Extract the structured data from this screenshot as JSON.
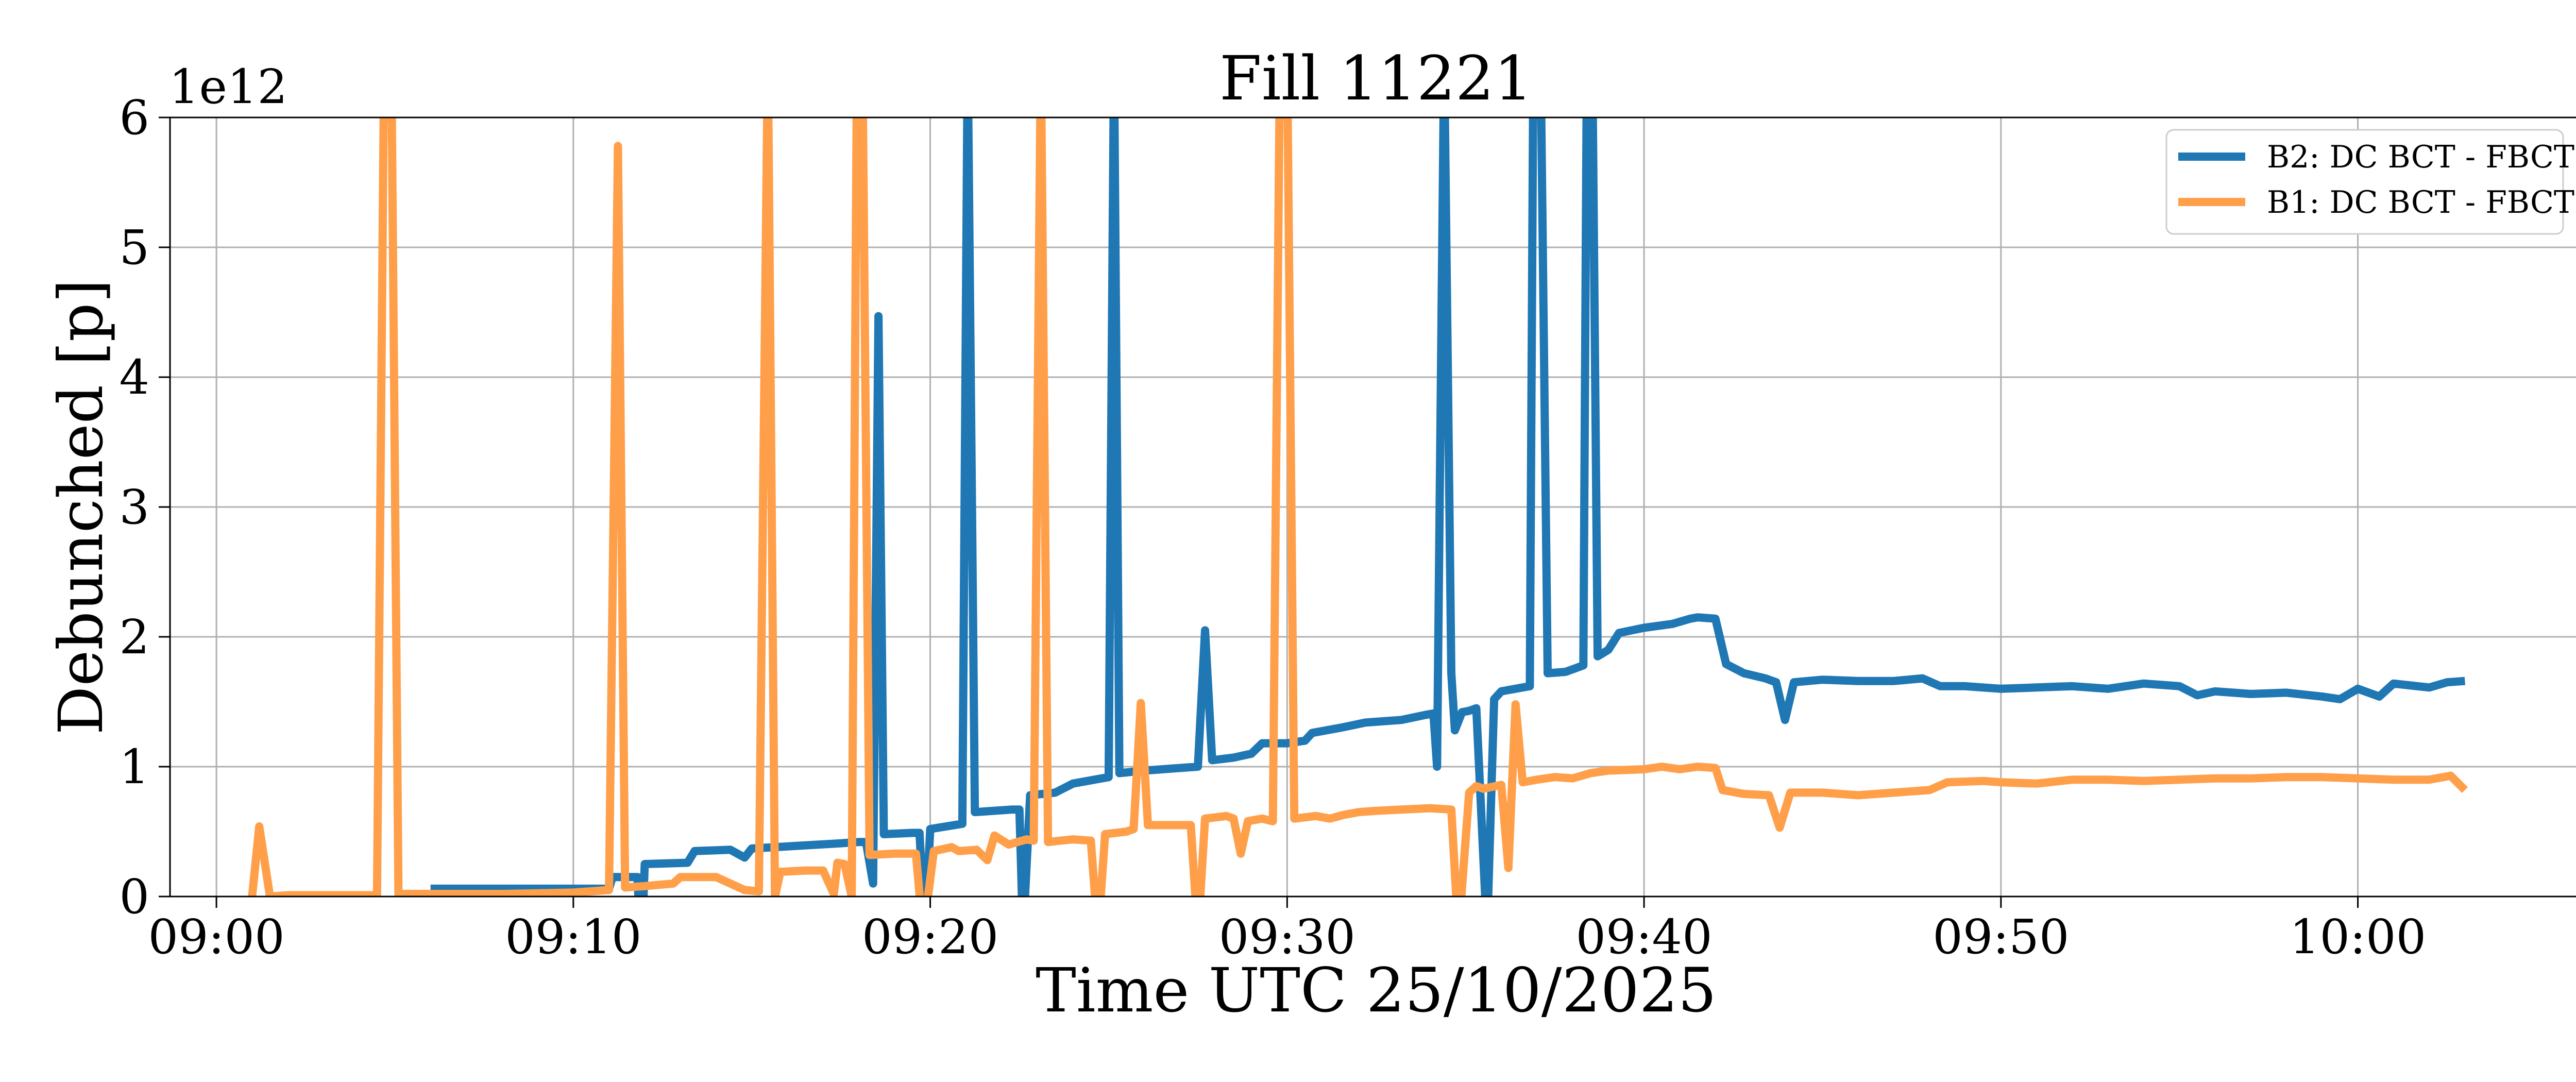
{
  "chart_data": {
    "type": "line",
    "title": "Fill 11221",
    "xlabel": "Time UTC 25/10/2025",
    "ylabel": "Debunched [p]",
    "y_offset_label": "1e12",
    "x_unit": "minutes after 09:00",
    "xlim": [
      -1.3,
      66.3
    ],
    "ylim": [
      0,
      6
    ],
    "x_ticks": [
      0,
      10,
      20,
      30,
      40,
      50,
      60
    ],
    "x_tick_labels": [
      "09:00",
      "09:10",
      "09:20",
      "09:30",
      "09:40",
      "09:50",
      "10:00"
    ],
    "y_ticks": [
      0,
      1,
      2,
      3,
      4,
      5,
      6
    ],
    "y_tick_labels": [
      "0",
      "1",
      "2",
      "3",
      "4",
      "5",
      "6"
    ],
    "grid": true,
    "legend_position": "top-right",
    "series": [
      {
        "name": "B2: DC BCT - FBCT",
        "color": "#1f77b4",
        "points": [
          [
            6.0,
            0.06
          ],
          [
            11.0,
            0.06
          ],
          [
            11.1,
            0.15
          ],
          [
            11.8,
            0.15
          ],
          [
            11.9,
            -0.5
          ],
          [
            12.0,
            0.25
          ],
          [
            13.2,
            0.26
          ],
          [
            13.4,
            0.35
          ],
          [
            14.4,
            0.36
          ],
          [
            14.8,
            0.3
          ],
          [
            15.0,
            0.37
          ],
          [
            17.5,
            0.41
          ],
          [
            18.0,
            0.42
          ],
          [
            18.2,
            0.42
          ],
          [
            18.4,
            0.1
          ],
          [
            18.55,
            4.47
          ],
          [
            18.7,
            0.48
          ],
          [
            19.5,
            0.49
          ],
          [
            19.7,
            0.49
          ],
          [
            19.85,
            -0.3
          ],
          [
            20.0,
            0.52
          ],
          [
            20.9,
            0.56
          ],
          [
            21.05,
            6.5
          ],
          [
            21.25,
            0.65
          ],
          [
            22.3,
            0.67
          ],
          [
            22.5,
            0.67
          ],
          [
            22.6,
            -0.3
          ],
          [
            22.8,
            0.78
          ],
          [
            23.5,
            0.8
          ],
          [
            24.0,
            0.87
          ],
          [
            25.0,
            0.92
          ],
          [
            25.15,
            6.5
          ],
          [
            25.3,
            0.95
          ],
          [
            26.0,
            0.97
          ],
          [
            27.5,
            1.0
          ],
          [
            27.7,
            2.05
          ],
          [
            27.9,
            1.05
          ],
          [
            28.5,
            1.07
          ],
          [
            29.0,
            1.1
          ],
          [
            29.3,
            1.18
          ],
          [
            30.0,
            1.18
          ],
          [
            30.5,
            1.2
          ],
          [
            30.7,
            1.26
          ],
          [
            31.5,
            1.3
          ],
          [
            32.2,
            1.34
          ],
          [
            33.2,
            1.36
          ],
          [
            33.9,
            1.4
          ],
          [
            34.1,
            1.41
          ],
          [
            34.2,
            1.0
          ],
          [
            34.4,
            6.5
          ],
          [
            34.6,
            1.72
          ],
          [
            34.7,
            1.28
          ],
          [
            34.9,
            1.42
          ],
          [
            35.1,
            1.43
          ],
          [
            35.3,
            1.45
          ],
          [
            35.6,
            -0.3
          ],
          [
            35.8,
            1.52
          ],
          [
            36.0,
            1.58
          ],
          [
            36.8,
            1.62
          ],
          [
            36.9,
            6.5
          ],
          [
            37.1,
            6.5
          ],
          [
            37.3,
            1.72
          ],
          [
            37.8,
            1.73
          ],
          [
            38.3,
            1.78
          ],
          [
            38.4,
            6.5
          ],
          [
            38.55,
            6.5
          ],
          [
            38.7,
            1.85
          ],
          [
            39.0,
            1.9
          ],
          [
            39.3,
            2.03
          ],
          [
            40.0,
            2.07
          ],
          [
            40.8,
            2.1
          ],
          [
            41.3,
            2.14
          ],
          [
            41.5,
            2.15
          ],
          [
            42.0,
            2.14
          ],
          [
            42.3,
            1.79
          ],
          [
            42.8,
            1.72
          ],
          [
            43.4,
            1.68
          ],
          [
            43.7,
            1.65
          ],
          [
            43.95,
            1.36
          ],
          [
            44.2,
            1.65
          ],
          [
            45.0,
            1.67
          ],
          [
            46.0,
            1.66
          ],
          [
            47.0,
            1.66
          ],
          [
            47.8,
            1.68
          ],
          [
            48.3,
            1.62
          ],
          [
            49.0,
            1.62
          ],
          [
            50.0,
            1.6
          ],
          [
            51.0,
            1.61
          ],
          [
            52.0,
            1.62
          ],
          [
            53.0,
            1.6
          ],
          [
            54.0,
            1.64
          ],
          [
            55.0,
            1.62
          ],
          [
            55.5,
            1.55
          ],
          [
            56.0,
            1.58
          ],
          [
            57.0,
            1.56
          ],
          [
            58.0,
            1.57
          ],
          [
            59.0,
            1.54
          ],
          [
            59.5,
            1.52
          ],
          [
            60.0,
            1.6
          ],
          [
            60.6,
            1.54
          ],
          [
            61.0,
            1.64
          ],
          [
            62.0,
            1.61
          ],
          [
            62.5,
            1.65
          ],
          [
            63.0,
            1.66
          ]
        ]
      },
      {
        "name": "B1: DC BCT - FBCT",
        "color": "#ff9f4a",
        "points": [
          [
            1.0,
            0.0
          ],
          [
            1.2,
            0.54
          ],
          [
            1.5,
            0.0
          ],
          [
            2.0,
            0.01
          ],
          [
            4.5,
            0.01
          ],
          [
            4.7,
            6.5
          ],
          [
            4.9,
            6.5
          ],
          [
            5.1,
            0.02
          ],
          [
            5.5,
            0.02
          ],
          [
            8.0,
            0.02
          ],
          [
            10.0,
            0.03
          ],
          [
            11.0,
            0.05
          ],
          [
            11.25,
            5.78
          ],
          [
            11.45,
            0.07
          ],
          [
            12.0,
            0.08
          ],
          [
            12.8,
            0.1
          ],
          [
            13.0,
            0.15
          ],
          [
            14.0,
            0.15
          ],
          [
            14.8,
            0.05
          ],
          [
            15.2,
            0.04
          ],
          [
            15.45,
            6.5
          ],
          [
            15.65,
            0.0
          ],
          [
            15.8,
            0.19
          ],
          [
            16.5,
            0.2
          ],
          [
            17.0,
            0.2
          ],
          [
            17.3,
            0.02
          ],
          [
            17.4,
            0.26
          ],
          [
            17.6,
            0.25
          ],
          [
            17.8,
            0.0
          ],
          [
            17.95,
            6.5
          ],
          [
            18.1,
            6.5
          ],
          [
            18.3,
            0.32
          ],
          [
            19.0,
            0.33
          ],
          [
            19.6,
            0.33
          ],
          [
            19.8,
            -0.3
          ],
          [
            20.1,
            0.35
          ],
          [
            20.6,
            0.38
          ],
          [
            20.8,
            0.35
          ],
          [
            21.3,
            0.36
          ],
          [
            21.6,
            0.28
          ],
          [
            21.8,
            0.47
          ],
          [
            22.2,
            0.4
          ],
          [
            22.7,
            0.44
          ],
          [
            22.9,
            0.43
          ],
          [
            23.1,
            6.5
          ],
          [
            23.3,
            0.42
          ],
          [
            24.0,
            0.44
          ],
          [
            24.5,
            0.43
          ],
          [
            24.7,
            -0.3
          ],
          [
            24.9,
            0.48
          ],
          [
            25.5,
            0.5
          ],
          [
            25.7,
            0.52
          ],
          [
            25.9,
            1.49
          ],
          [
            26.1,
            0.55
          ],
          [
            27.0,
            0.55
          ],
          [
            27.3,
            0.55
          ],
          [
            27.5,
            -0.3
          ],
          [
            27.7,
            0.6
          ],
          [
            28.3,
            0.62
          ],
          [
            28.5,
            0.6
          ],
          [
            28.7,
            0.33
          ],
          [
            28.9,
            0.58
          ],
          [
            29.3,
            0.6
          ],
          [
            29.6,
            0.58
          ],
          [
            29.8,
            6.5
          ],
          [
            30.0,
            6.5
          ],
          [
            30.2,
            0.6
          ],
          [
            30.8,
            0.62
          ],
          [
            31.2,
            0.6
          ],
          [
            31.6,
            0.63
          ],
          [
            32.0,
            0.65
          ],
          [
            32.5,
            0.66
          ],
          [
            33.2,
            0.67
          ],
          [
            34.0,
            0.68
          ],
          [
            34.6,
            0.67
          ],
          [
            34.8,
            -0.3
          ],
          [
            35.1,
            0.8
          ],
          [
            35.3,
            0.85
          ],
          [
            35.5,
            0.83
          ],
          [
            36.0,
            0.86
          ],
          [
            36.2,
            0.22
          ],
          [
            36.4,
            1.48
          ],
          [
            36.6,
            0.88
          ],
          [
            37.0,
            0.9
          ],
          [
            37.5,
            0.92
          ],
          [
            38.0,
            0.91
          ],
          [
            38.5,
            0.95
          ],
          [
            39.0,
            0.97
          ],
          [
            40.0,
            0.98
          ],
          [
            40.5,
            1.0
          ],
          [
            41.0,
            0.98
          ],
          [
            41.5,
            1.0
          ],
          [
            42.0,
            0.99
          ],
          [
            42.2,
            0.82
          ],
          [
            42.8,
            0.79
          ],
          [
            43.5,
            0.78
          ],
          [
            43.8,
            0.53
          ],
          [
            44.1,
            0.8
          ],
          [
            45.0,
            0.8
          ],
          [
            46.0,
            0.78
          ],
          [
            47.0,
            0.8
          ],
          [
            48.0,
            0.82
          ],
          [
            48.5,
            0.88
          ],
          [
            49.5,
            0.89
          ],
          [
            50.0,
            0.88
          ],
          [
            51.0,
            0.87
          ],
          [
            52.0,
            0.9
          ],
          [
            53.0,
            0.9
          ],
          [
            54.0,
            0.89
          ],
          [
            55.0,
            0.9
          ],
          [
            56.0,
            0.91
          ],
          [
            57.0,
            0.91
          ],
          [
            58.0,
            0.92
          ],
          [
            59.0,
            0.92
          ],
          [
            60.0,
            0.91
          ],
          [
            61.0,
            0.9
          ],
          [
            62.0,
            0.9
          ],
          [
            62.6,
            0.93
          ],
          [
            63.0,
            0.82
          ]
        ]
      }
    ]
  }
}
